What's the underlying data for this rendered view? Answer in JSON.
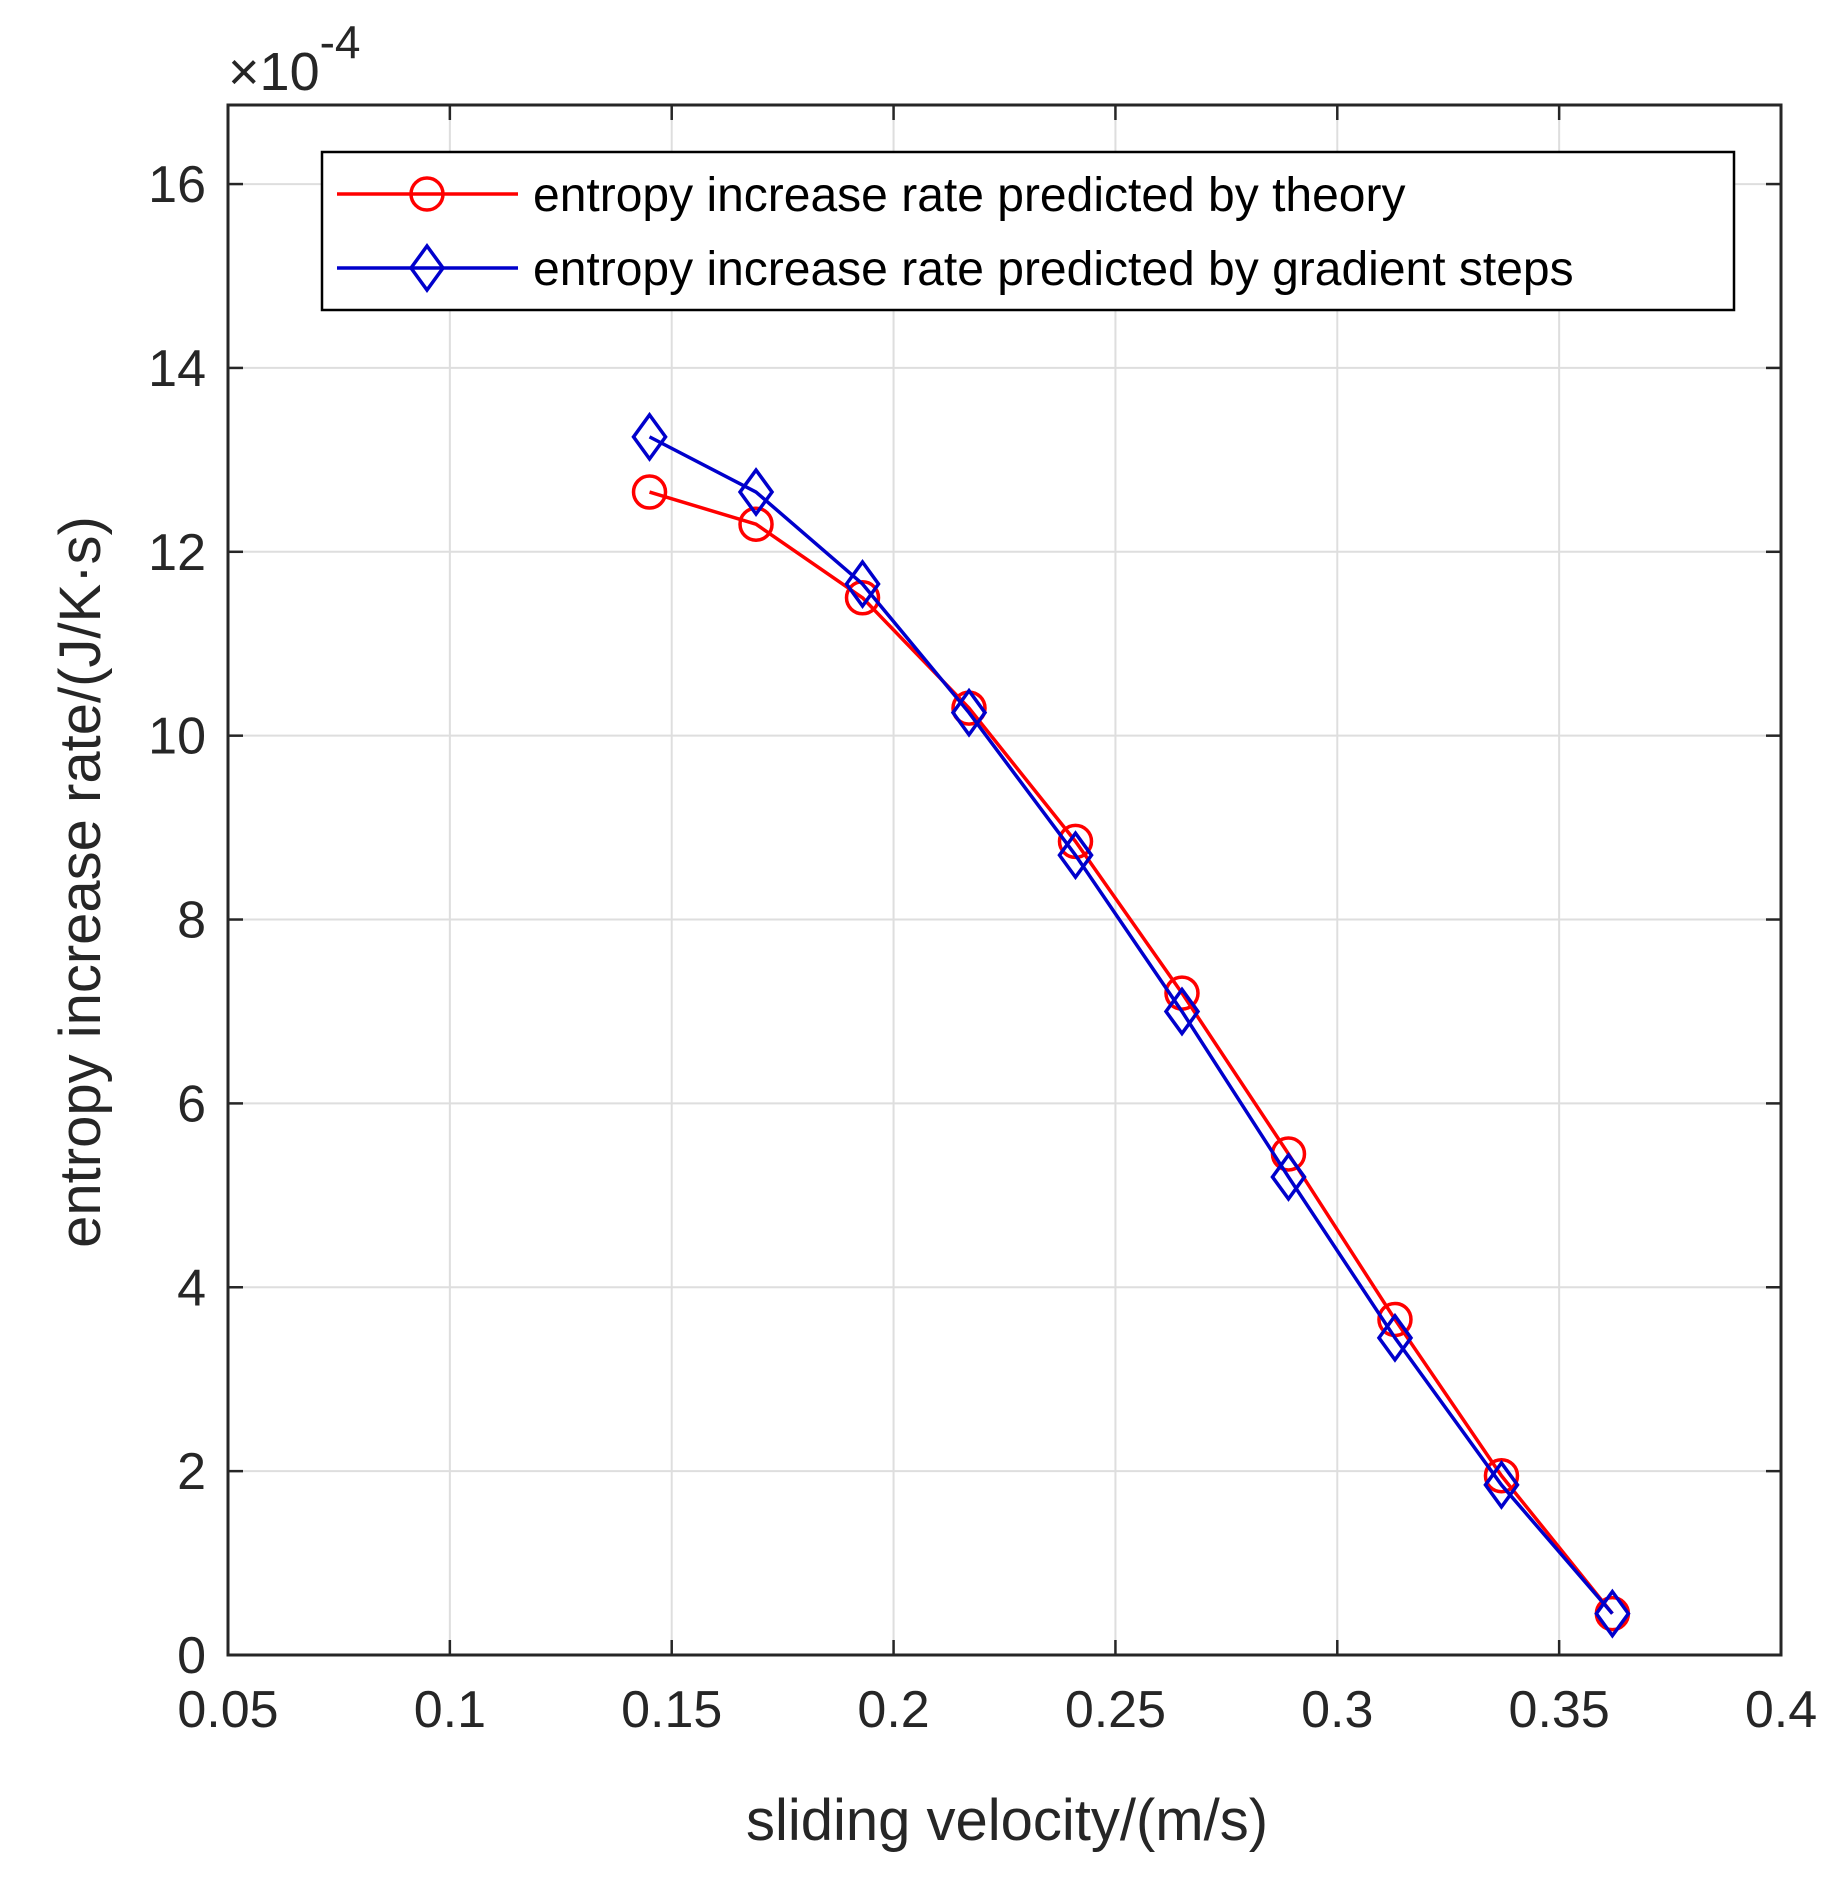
{
  "chart_data": {
    "type": "line",
    "title": "",
    "xlabel": "sliding velocity/(m/s)",
    "ylabel": "entropy increase rate/(J/K·s)",
    "y_multiplier": {
      "prefix": "×10",
      "exponent": "-4"
    },
    "xlim": [
      0.05,
      0.4
    ],
    "ylim": [
      0,
      16.86
    ],
    "xticks": [
      0.05,
      0.1,
      0.15,
      0.2,
      0.25,
      0.3,
      0.35,
      0.4
    ],
    "xtick_labels": [
      "0.05",
      "0.1",
      "0.15",
      "0.2",
      "0.25",
      "0.3",
      "0.35",
      "0.4"
    ],
    "yticks": [
      0,
      2,
      4,
      6,
      8,
      10,
      12,
      14,
      16
    ],
    "ytick_labels": [
      "0",
      "2",
      "4",
      "6",
      "8",
      "10",
      "12",
      "14",
      "16"
    ],
    "grid": true,
    "legend_position": "top-right",
    "series": [
      {
        "name": "entropy increase rate predicted by theory",
        "color": "#ff0000",
        "marker": "circle",
        "x": [
          0.145,
          0.169,
          0.193,
          0.217,
          0.241,
          0.265,
          0.289,
          0.313,
          0.337,
          0.362
        ],
        "y": [
          12.65,
          12.3,
          11.5,
          10.3,
          8.85,
          7.2,
          5.45,
          3.65,
          1.95,
          0.45
        ]
      },
      {
        "name": "entropy increase rate predicted by gradient steps",
        "color": "#0000cc",
        "marker": "diamond",
        "x": [
          0.145,
          0.169,
          0.193,
          0.217,
          0.241,
          0.265,
          0.289,
          0.313,
          0.337,
          0.362
        ],
        "y": [
          13.25,
          12.65,
          11.65,
          10.25,
          8.7,
          7.0,
          5.2,
          3.45,
          1.85,
          0.45
        ]
      }
    ]
  }
}
